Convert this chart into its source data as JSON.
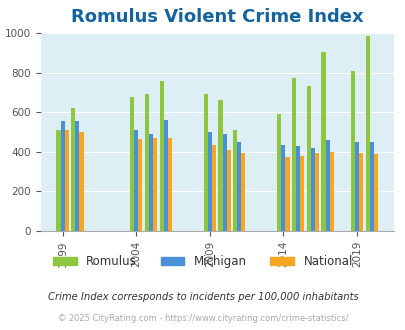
{
  "title": "Romulus Violent Crime Index",
  "title_color": "#1464a0",
  "subtitle": "Crime Index corresponds to incidents per 100,000 inhabitants",
  "footer": "© 2025 CityRating.com - https://www.cityrating.com/crime-statistics/",
  "years": [
    1999,
    2000,
    2004,
    2005,
    2006,
    2009,
    2010,
    2011,
    2014,
    2015,
    2016,
    2017,
    2019,
    2020
  ],
  "romulus": [
    510,
    620,
    675,
    690,
    760,
    690,
    660,
    510,
    590,
    775,
    730,
    905,
    810,
    985
  ],
  "michigan": [
    555,
    555,
    510,
    490,
    560,
    500,
    490,
    450,
    435,
    430,
    420,
    460,
    450,
    450
  ],
  "national": [
    510,
    500,
    465,
    470,
    470,
    435,
    410,
    395,
    375,
    380,
    395,
    400,
    395,
    390
  ],
  "color_romulus": "#8dc63f",
  "color_michigan": "#4a90d9",
  "color_national": "#f5a623",
  "bg_color": "#ddeef5",
  "ylim": [
    0,
    1000
  ],
  "yticks": [
    0,
    200,
    400,
    600,
    800,
    1000
  ],
  "xtick_labels": [
    "1999",
    "2004",
    "2009",
    "2014",
    "2019"
  ],
  "xtick_positions": [
    1999,
    2004,
    2009,
    2014,
    2019
  ],
  "legend_labels": [
    "Romulus",
    "Michigan",
    "National"
  ],
  "title_fontsize": 13,
  "label_fontsize": 7.5
}
